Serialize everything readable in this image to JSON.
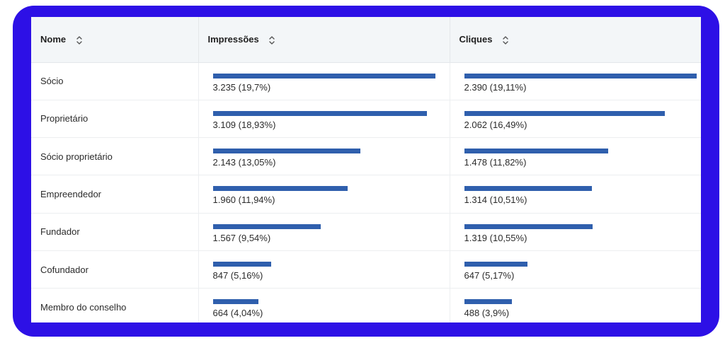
{
  "table": {
    "columns": [
      {
        "label": "Nome"
      },
      {
        "label": "Impressões"
      },
      {
        "label": "Cliques"
      }
    ],
    "rows": [
      {
        "name": "Sócio",
        "impressions": "3.235 (19,7%)",
        "impressions_fraction": 1.0,
        "clicks": "2.390 (19,11%)",
        "clicks_fraction": 1.0
      },
      {
        "name": "Proprietário",
        "impressions": "3.109 (18,93%)",
        "impressions_fraction": 0.961,
        "clicks": "2.062 (16,49%)",
        "clicks_fraction": 0.863
      },
      {
        "name": "Sócio proprietário",
        "impressions": "2.143 (13,05%)",
        "impressions_fraction": 0.662,
        "clicks": "1.478 (11,82%)",
        "clicks_fraction": 0.618
      },
      {
        "name": "Empreendedor",
        "impressions": "1.960 (11,94%)",
        "impressions_fraction": 0.606,
        "clicks": "1.314 (10,51%)",
        "clicks_fraction": 0.55
      },
      {
        "name": "Fundador",
        "impressions": "1.567 (9,54%)",
        "impressions_fraction": 0.484,
        "clicks": "1.319 (10,55%)",
        "clicks_fraction": 0.552
      },
      {
        "name": "Cofundador",
        "impressions": "847 (5,16%)",
        "impressions_fraction": 0.262,
        "clicks": "647 (5,17%)",
        "clicks_fraction": 0.271
      },
      {
        "name": "Membro do conselho",
        "impressions": "664 (4,04%)",
        "impressions_fraction": 0.205,
        "clicks": "488 (3,9%)",
        "clicks_fraction": 0.204
      }
    ]
  },
  "icons": {
    "sort": "sort-updown-icon"
  },
  "colors": {
    "frame": "#2d10e6",
    "bar": "#2f5fad",
    "header_bg": "#f3f6f8"
  }
}
